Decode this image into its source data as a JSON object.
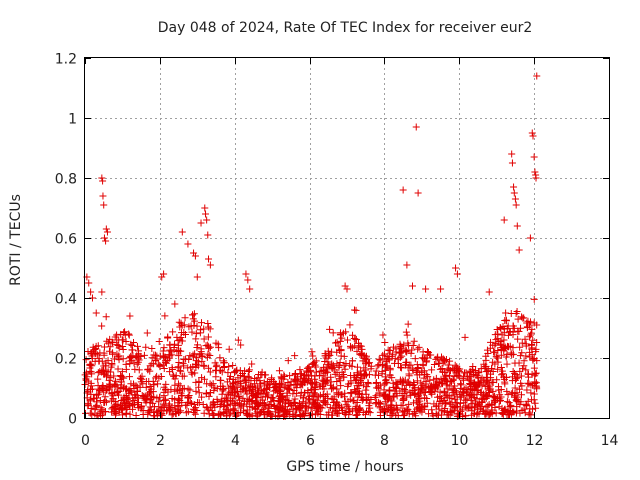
{
  "chart_data": {
    "type": "scatter",
    "title": "Day 048 of 2024, Rate Of TEC Index for receiver eur2",
    "xlabel": "GPS time / hours",
    "ylabel": "ROTI / TECUs",
    "xlim": [
      0,
      14
    ],
    "ylim": [
      0,
      1.2
    ],
    "xticks": [
      0,
      2,
      4,
      6,
      8,
      10,
      12,
      14
    ],
    "yticks": [
      0,
      0.2,
      0.4,
      0.6,
      0.8,
      1,
      1.2
    ],
    "xtick_labels": [
      "0",
      "2",
      "4",
      "6",
      "8",
      "10",
      "12",
      "14"
    ],
    "ytick_labels": [
      "0",
      "0.2",
      "0.4",
      "0.6",
      "0.8",
      "1",
      "1.2"
    ],
    "grid": true,
    "marker": "+",
    "color": "#e00000",
    "data_gap_hours": [
      7.65,
      7.75
    ],
    "series": [
      {
        "name": "eur2",
        "points": [
          [
            0.05,
            0.47
          ],
          [
            0.1,
            0.45
          ],
          [
            0.15,
            0.42
          ],
          [
            0.2,
            0.4
          ],
          [
            0.3,
            0.35
          ],
          [
            0.45,
            0.8
          ],
          [
            0.47,
            0.79
          ],
          [
            0.48,
            0.74
          ],
          [
            0.5,
            0.71
          ],
          [
            0.52,
            0.6
          ],
          [
            0.55,
            0.59
          ],
          [
            0.57,
            0.63
          ],
          [
            0.6,
            0.62
          ],
          [
            0.45,
            0.42
          ],
          [
            1.2,
            0.34
          ],
          [
            2.05,
            0.47
          ],
          [
            2.1,
            0.48
          ],
          [
            2.4,
            0.38
          ],
          [
            2.6,
            0.62
          ],
          [
            2.75,
            0.58
          ],
          [
            2.9,
            0.55
          ],
          [
            2.95,
            0.54
          ],
          [
            3.0,
            0.47
          ],
          [
            3.1,
            0.65
          ],
          [
            3.2,
            0.7
          ],
          [
            3.22,
            0.68
          ],
          [
            3.25,
            0.66
          ],
          [
            3.28,
            0.61
          ],
          [
            3.3,
            0.53
          ],
          [
            3.35,
            0.51
          ],
          [
            4.3,
            0.48
          ],
          [
            4.35,
            0.46
          ],
          [
            4.4,
            0.43
          ],
          [
            6.95,
            0.44
          ],
          [
            7.0,
            0.43
          ],
          [
            7.2,
            0.36
          ],
          [
            8.5,
            0.76
          ],
          [
            8.6,
            0.51
          ],
          [
            8.75,
            0.44
          ],
          [
            8.85,
            0.97
          ],
          [
            8.9,
            0.75
          ],
          [
            9.1,
            0.43
          ],
          [
            9.5,
            0.43
          ],
          [
            9.9,
            0.5
          ],
          [
            9.95,
            0.48
          ],
          [
            10.8,
            0.42
          ],
          [
            11.2,
            0.66
          ],
          [
            11.4,
            0.88
          ],
          [
            11.42,
            0.85
          ],
          [
            11.45,
            0.77
          ],
          [
            11.47,
            0.75
          ],
          [
            11.5,
            0.73
          ],
          [
            11.52,
            0.71
          ],
          [
            11.55,
            0.64
          ],
          [
            11.6,
            0.56
          ],
          [
            11.9,
            0.6
          ],
          [
            11.95,
            0.95
          ],
          [
            11.97,
            0.94
          ],
          [
            12.0,
            0.87
          ],
          [
            12.02,
            0.82
          ],
          [
            12.04,
            0.81
          ],
          [
            12.05,
            0.8
          ],
          [
            12.07,
            1.14
          ]
        ]
      }
    ]
  }
}
